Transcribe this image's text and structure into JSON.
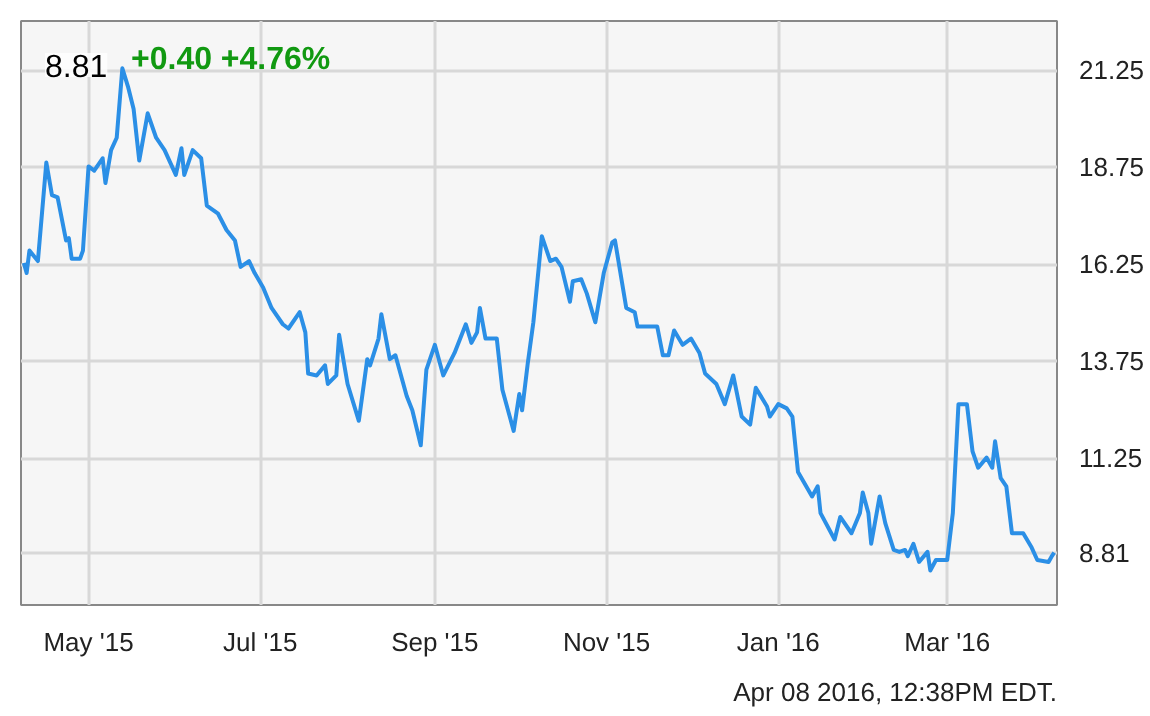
{
  "chart_data": {
    "type": "line",
    "title": "8.81",
    "subtitle": "+0.40  +4.76%",
    "x": [
      "2015-04-08",
      "2015-04-09",
      "2015-04-10",
      "2015-04-13",
      "2015-04-16",
      "2015-04-18",
      "2015-04-20",
      "2015-04-23",
      "2015-04-24",
      "2015-04-25",
      "2015-04-28",
      "2015-04-29",
      "2015-05-01",
      "2015-05-03",
      "2015-05-06",
      "2015-05-07",
      "2015-05-09",
      "2015-05-11",
      "2015-05-13",
      "2015-05-15",
      "2015-05-17",
      "2015-05-19",
      "2015-05-22",
      "2015-05-25",
      "2015-05-28",
      "2015-06-01",
      "2015-06-03",
      "2015-06-04",
      "2015-06-07",
      "2015-06-10",
      "2015-06-12",
      "2015-06-16",
      "2015-06-19",
      "2015-06-22",
      "2015-06-24",
      "2015-06-27",
      "2015-06-29",
      "2015-07-02",
      "2015-07-05",
      "2015-07-09",
      "2015-07-11",
      "2015-07-15",
      "2015-07-17",
      "2015-07-18",
      "2015-07-21",
      "2015-07-24",
      "2015-07-25",
      "2015-07-28",
      "2015-07-29",
      "2015-08-01",
      "2015-08-05",
      "2015-08-08",
      "2015-08-09",
      "2015-08-12",
      "2015-08-13",
      "2015-08-16",
      "2015-08-18",
      "2015-08-22",
      "2015-08-24",
      "2015-08-27",
      "2015-08-29",
      "2015-09-01",
      "2015-09-04",
      "2015-09-08",
      "2015-09-12",
      "2015-09-14",
      "2015-09-16",
      "2015-09-17",
      "2015-09-19",
      "2015-09-23",
      "2015-09-25",
      "2015-09-29",
      "2015-10-01",
      "2015-10-02",
      "2015-10-04",
      "2015-10-06",
      "2015-10-09",
      "2015-10-12",
      "2015-10-14",
      "2015-10-16",
      "2015-10-19",
      "2015-10-20",
      "2015-10-23",
      "2015-10-25",
      "2015-10-28",
      "2015-10-31",
      "2015-11-03",
      "2015-11-04",
      "2015-11-08",
      "2015-11-11",
      "2015-11-12",
      "2015-11-19",
      "2015-11-21",
      "2015-11-23",
      "2015-11-25",
      "2015-11-28",
      "2015-12-01",
      "2015-12-04",
      "2015-12-06",
      "2015-12-10",
      "2015-12-13",
      "2015-12-16",
      "2015-12-19",
      "2015-12-22",
      "2015-12-24",
      "2015-12-28",
      "2015-12-29",
      "2016-01-01",
      "2016-01-04",
      "2016-01-06",
      "2016-01-08",
      "2016-01-13",
      "2016-01-15",
      "2016-01-16",
      "2016-01-21",
      "2016-01-23",
      "2016-01-27",
      "2016-01-30",
      "2016-01-31",
      "2016-02-02",
      "2016-02-03",
      "2016-02-06",
      "2016-02-08",
      "2016-02-11",
      "2016-02-13",
      "2016-02-15",
      "2016-02-16",
      "2016-02-18",
      "2016-02-20",
      "2016-02-23",
      "2016-02-24",
      "2016-02-26",
      "2016-03-01",
      "2016-03-03",
      "2016-03-05",
      "2016-03-08",
      "2016-03-10",
      "2016-03-12",
      "2016-03-15",
      "2016-03-17",
      "2016-03-18",
      "2016-03-20",
      "2016-03-22",
      "2016-03-24",
      "2016-03-28",
      "2016-03-31",
      "2016-04-02",
      "2016-04-06",
      "2016-04-07",
      "2016-04-08"
    ],
    "series": [
      {
        "color": "#2b8fe6",
        "values": [
          16.28,
          16.02,
          16.6,
          16.33,
          18.87,
          18.03,
          17.97,
          16.86,
          16.92,
          16.39,
          16.39,
          16.6,
          18.77,
          18.66,
          18.98,
          18.34,
          19.19,
          19.51,
          21.3,
          20.83,
          20.25,
          18.92,
          20.14,
          19.51,
          19.19,
          18.55,
          19.24,
          18.55,
          19.19,
          18.98,
          17.76,
          17.55,
          17.13,
          16.86,
          16.18,
          16.33,
          16.02,
          15.65,
          15.12,
          14.7,
          14.59,
          15.01,
          14.49,
          13.43,
          13.38,
          13.64,
          13.16,
          13.38,
          14.43,
          13.16,
          12.21,
          13.8,
          13.64,
          14.33,
          14.96,
          13.8,
          13.9,
          12.85,
          12.48,
          11.58,
          13.53,
          14.17,
          13.38,
          13.96,
          14.7,
          14.22,
          14.49,
          15.12,
          14.33,
          14.33,
          13.01,
          11.95,
          12.9,
          12.48,
          13.69,
          14.75,
          16.97,
          16.33,
          16.39,
          16.18,
          15.28,
          15.81,
          15.86,
          15.49,
          14.75,
          16.02,
          16.81,
          16.86,
          15.12,
          15.01,
          14.64,
          14.64,
          13.9,
          13.9,
          14.54,
          14.17,
          14.33,
          13.96,
          13.43,
          13.16,
          12.64,
          13.38,
          12.32,
          12.11,
          13.06,
          12.58,
          12.32,
          12.64,
          12.53,
          12.32,
          10.89,
          10.26,
          10.52,
          9.83,
          9.15,
          9.73,
          9.31,
          9.83,
          10.36,
          9.83,
          9.04,
          10.26,
          9.57,
          8.88,
          8.83,
          8.88,
          8.72,
          9.04,
          8.57,
          8.83,
          8.35,
          8.62,
          8.62,
          9.83,
          12.64,
          12.64,
          11.42,
          11.0,
          11.26,
          11.0,
          11.68,
          10.73,
          10.52,
          9.31,
          9.31,
          8.94,
          8.62,
          8.57,
          8.7,
          8.81
        ]
      }
    ],
    "xlim": [
      "2015-04-07",
      "2016-04-09"
    ],
    "xticks": [
      {
        "value": "2015-05-01",
        "label": "May '15"
      },
      {
        "value": "2015-07-01",
        "label": "Jul '15"
      },
      {
        "value": "2015-09-01",
        "label": "Sep '15"
      },
      {
        "value": "2015-11-01",
        "label": "Nov '15"
      },
      {
        "value": "2016-01-01",
        "label": "Jan '16"
      },
      {
        "value": "2016-03-01",
        "label": "Mar '16"
      }
    ],
    "ylim": [
      7.46,
      22.52
    ],
    "yticks": [
      8.81,
      11.25,
      13.75,
      16.25,
      18.75,
      21.25
    ],
    "grid": true,
    "annotations": [
      "Apr 08 2016, 12:38PM EDT."
    ]
  }
}
